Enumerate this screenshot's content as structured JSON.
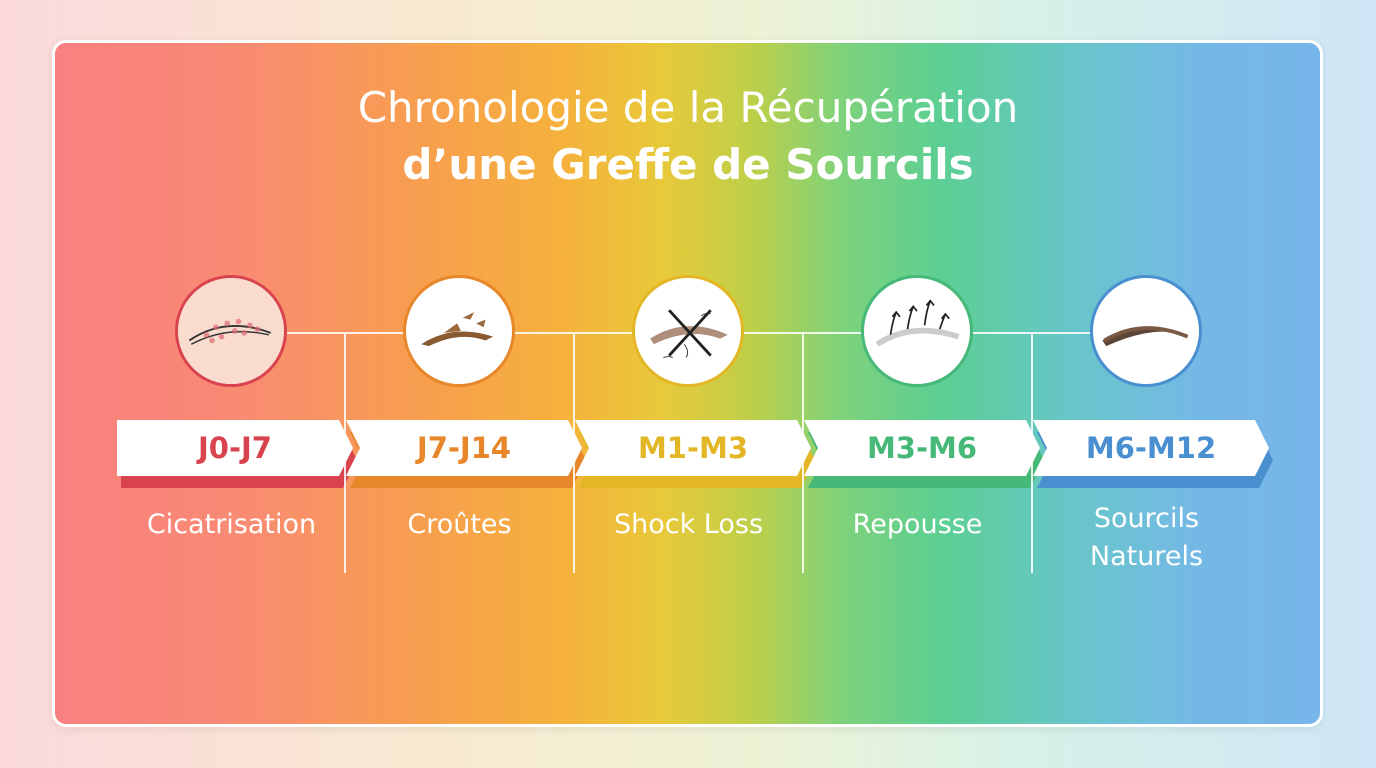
{
  "title": {
    "line1": "Chronologie de la Récupération",
    "line2": "d’une Greffe de Sourcils"
  },
  "stages": [
    {
      "period": "J0-J7",
      "phase": "Cicatrisation",
      "icon": "irritated-eyebrow-icon",
      "color": "#d9434e"
    },
    {
      "period": "J7-J14",
      "phase": "Croûtes",
      "icon": "scabs-eyebrow-icon",
      "color": "#e8862a"
    },
    {
      "period": "M1-M3",
      "phase": "Shock Loss",
      "icon": "hair-loss-cross-icon",
      "color": "#e3b625"
    },
    {
      "period": "M3-M6",
      "phase": "Repousse",
      "icon": "regrowth-arrows-icon",
      "color": "#46b878"
    },
    {
      "period": "M6-M12",
      "phase": "Sourcils Naturels",
      "icon": "full-eyebrow-icon",
      "color": "#4a90d0"
    }
  ]
}
